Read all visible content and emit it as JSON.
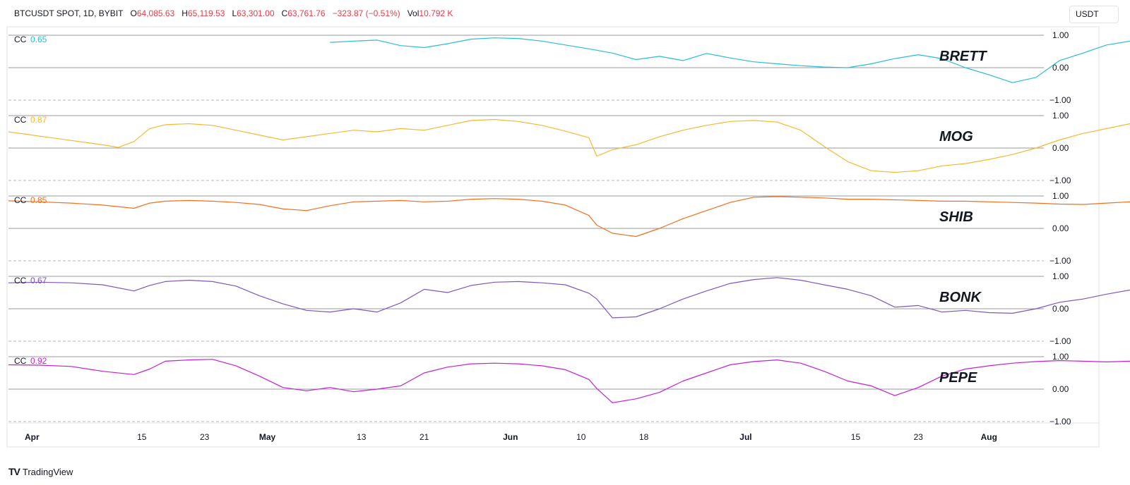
{
  "header": {
    "symbol": "BTCUSDT SPOT, 1D, BYBIT",
    "open_label": "O",
    "open": "64,085.63",
    "high_label": "H",
    "high": "65,119.53",
    "low_label": "L",
    "low": "63,301.00",
    "close_label": "C",
    "close": "63,761.76",
    "change": "−323.87 (−0.51%)",
    "vol_label": "Vol",
    "vol": "10.792 K",
    "value_color": "#f23645"
  },
  "currency_button": "USDT",
  "brand": {
    "name": "TradingView",
    "logo": "TV"
  },
  "chart_data": {
    "type": "line",
    "x_ticks": [
      "Apr",
      "15",
      "23",
      "May",
      "13",
      "21",
      "Jun",
      "10",
      "18",
      "Jul",
      "15",
      "23",
      "Aug"
    ],
    "bold_x_ticks": [
      "Apr",
      "May",
      "Jun",
      "Jul",
      "Aug"
    ],
    "x_tick_days": [
      1,
      15,
      23,
      31,
      43,
      51,
      62,
      71,
      79,
      92,
      106,
      114,
      123
    ],
    "x_range_days": [
      -2,
      130
    ],
    "ylim": [
      -1,
      1
    ],
    "y_ticks": [
      "1.00",
      "0.00",
      "−1.00"
    ],
    "grid": true,
    "panes": [
      {
        "label": "CC",
        "value": "0.65",
        "name": "BRETT",
        "color": "#26bfd3",
        "x": [
          39,
          42,
          45,
          48,
          51,
          54,
          57,
          60,
          63,
          66,
          69,
          72,
          75,
          78,
          81,
          84,
          87,
          90,
          93,
          96,
          99,
          102,
          105,
          108,
          111,
          114,
          117,
          120,
          123,
          126,
          129,
          132,
          135,
          138,
          141,
          144,
          147,
          150,
          153
        ],
        "y": [
          0.78,
          0.82,
          0.85,
          0.68,
          0.62,
          0.74,
          0.88,
          0.92,
          0.9,
          0.82,
          0.7,
          0.58,
          0.45,
          0.25,
          0.35,
          0.22,
          0.44,
          0.3,
          0.18,
          0.12,
          0.06,
          0.02,
          0.0,
          0.12,
          0.28,
          0.4,
          0.28,
          0.0,
          -0.22,
          -0.46,
          -0.3,
          0.22,
          0.45,
          0.7,
          0.82,
          0.88,
          0.92,
          0.84,
          0.65
        ]
      },
      {
        "label": "CC",
        "value": "0.87",
        "name": "MOG",
        "color": "#f5b932",
        "x": [
          -2,
          1,
          4,
          7,
          10,
          12,
          14,
          16,
          18,
          21,
          24,
          27,
          30,
          33,
          36,
          39,
          42,
          45,
          48,
          51,
          54,
          57,
          60,
          63,
          66,
          69,
          72,
          73,
          75,
          78,
          81,
          84,
          87,
          90,
          93,
          96,
          99,
          102,
          105,
          108,
          111,
          114,
          117,
          120,
          123,
          126,
          129,
          132,
          135,
          138,
          141,
          144,
          147,
          150,
          153
        ],
        "y": [
          0.5,
          0.4,
          0.3,
          0.2,
          0.1,
          0.02,
          0.2,
          0.6,
          0.72,
          0.75,
          0.7,
          0.55,
          0.4,
          0.25,
          0.35,
          0.45,
          0.55,
          0.5,
          0.6,
          0.55,
          0.7,
          0.85,
          0.88,
          0.82,
          0.7,
          0.52,
          0.32,
          -0.25,
          -0.05,
          0.1,
          0.35,
          0.55,
          0.7,
          0.82,
          0.85,
          0.8,
          0.55,
          0.05,
          -0.42,
          -0.7,
          -0.75,
          -0.7,
          -0.55,
          -0.48,
          -0.35,
          -0.2,
          0.0,
          0.25,
          0.45,
          0.6,
          0.75,
          0.85,
          0.87,
          0.87,
          0.87
        ]
      },
      {
        "label": "CC",
        "value": "0.85",
        "name": "SHIB",
        "color": "#f26f1c",
        "x": [
          -2,
          2,
          6,
          10,
          14,
          16,
          18,
          21,
          24,
          27,
          30,
          33,
          36,
          39,
          42,
          45,
          48,
          51,
          54,
          57,
          60,
          63,
          66,
          69,
          72,
          73,
          75,
          78,
          81,
          84,
          87,
          90,
          93,
          96,
          99,
          102,
          105,
          108,
          111,
          114,
          117,
          120,
          123,
          126,
          129,
          132,
          135,
          138,
          141,
          144,
          147,
          150,
          153
        ],
        "y": [
          0.85,
          0.82,
          0.78,
          0.72,
          0.62,
          0.78,
          0.84,
          0.86,
          0.84,
          0.8,
          0.74,
          0.6,
          0.55,
          0.7,
          0.82,
          0.84,
          0.86,
          0.82,
          0.84,
          0.9,
          0.92,
          0.9,
          0.84,
          0.72,
          0.4,
          0.1,
          -0.15,
          -0.25,
          0.0,
          0.3,
          0.55,
          0.8,
          0.96,
          0.98,
          0.96,
          0.94,
          0.9,
          0.9,
          0.88,
          0.86,
          0.84,
          0.84,
          0.82,
          0.8,
          0.78,
          0.75,
          0.74,
          0.78,
          0.82,
          0.82,
          0.83,
          0.84,
          0.85
        ]
      },
      {
        "label": "CC",
        "value": "0.67",
        "name": "BONK",
        "color": "#7e57c2",
        "x": [
          -2,
          2,
          6,
          10,
          14,
          16,
          18,
          21,
          24,
          27,
          30,
          33,
          36,
          39,
          42,
          45,
          48,
          51,
          54,
          57,
          60,
          63,
          66,
          69,
          72,
          73,
          75,
          78,
          81,
          84,
          87,
          90,
          93,
          96,
          99,
          102,
          105,
          108,
          111,
          114,
          117,
          120,
          123,
          126,
          129,
          132,
          135,
          138,
          141,
          144,
          147,
          150,
          153
        ],
        "y": [
          0.8,
          0.82,
          0.8,
          0.74,
          0.55,
          0.72,
          0.84,
          0.88,
          0.84,
          0.7,
          0.4,
          0.15,
          -0.05,
          -0.1,
          0.0,
          -0.1,
          0.18,
          0.6,
          0.5,
          0.72,
          0.82,
          0.84,
          0.8,
          0.74,
          0.48,
          0.3,
          -0.28,
          -0.25,
          0.0,
          0.3,
          0.55,
          0.78,
          0.9,
          0.96,
          0.88,
          0.74,
          0.6,
          0.4,
          0.05,
          0.1,
          -0.1,
          -0.05,
          -0.12,
          -0.14,
          0.0,
          0.2,
          0.3,
          0.45,
          0.58,
          0.63,
          0.65,
          0.66,
          0.67
        ]
      },
      {
        "label": "CC",
        "value": "0.92",
        "name": "PEPE",
        "color": "#c41fd6",
        "x": [
          -2,
          2,
          6,
          10,
          14,
          16,
          18,
          21,
          24,
          27,
          30,
          33,
          36,
          39,
          42,
          45,
          48,
          51,
          54,
          57,
          60,
          63,
          66,
          69,
          72,
          73,
          75,
          78,
          81,
          84,
          87,
          90,
          93,
          96,
          99,
          102,
          105,
          108,
          111,
          114,
          117,
          120,
          123,
          126,
          129,
          132,
          135,
          138,
          141,
          144,
          147,
          150,
          153
        ],
        "y": [
          0.75,
          0.74,
          0.7,
          0.55,
          0.45,
          0.62,
          0.86,
          0.9,
          0.92,
          0.72,
          0.4,
          0.05,
          -0.05,
          0.05,
          -0.08,
          0.0,
          0.1,
          0.5,
          0.68,
          0.78,
          0.8,
          0.78,
          0.72,
          0.6,
          0.3,
          0.02,
          -0.42,
          -0.3,
          -0.1,
          0.25,
          0.5,
          0.75,
          0.85,
          0.9,
          0.8,
          0.55,
          0.25,
          0.1,
          -0.2,
          0.05,
          0.4,
          0.62,
          0.72,
          0.8,
          0.85,
          0.88,
          0.86,
          0.84,
          0.86,
          0.88,
          0.9,
          0.91,
          0.92
        ]
      }
    ]
  },
  "colors": {
    "axis_text": "#131722",
    "grid": "#d1d4dc",
    "baseline": "#9598a1",
    "dashed": "#b2b5be"
  }
}
